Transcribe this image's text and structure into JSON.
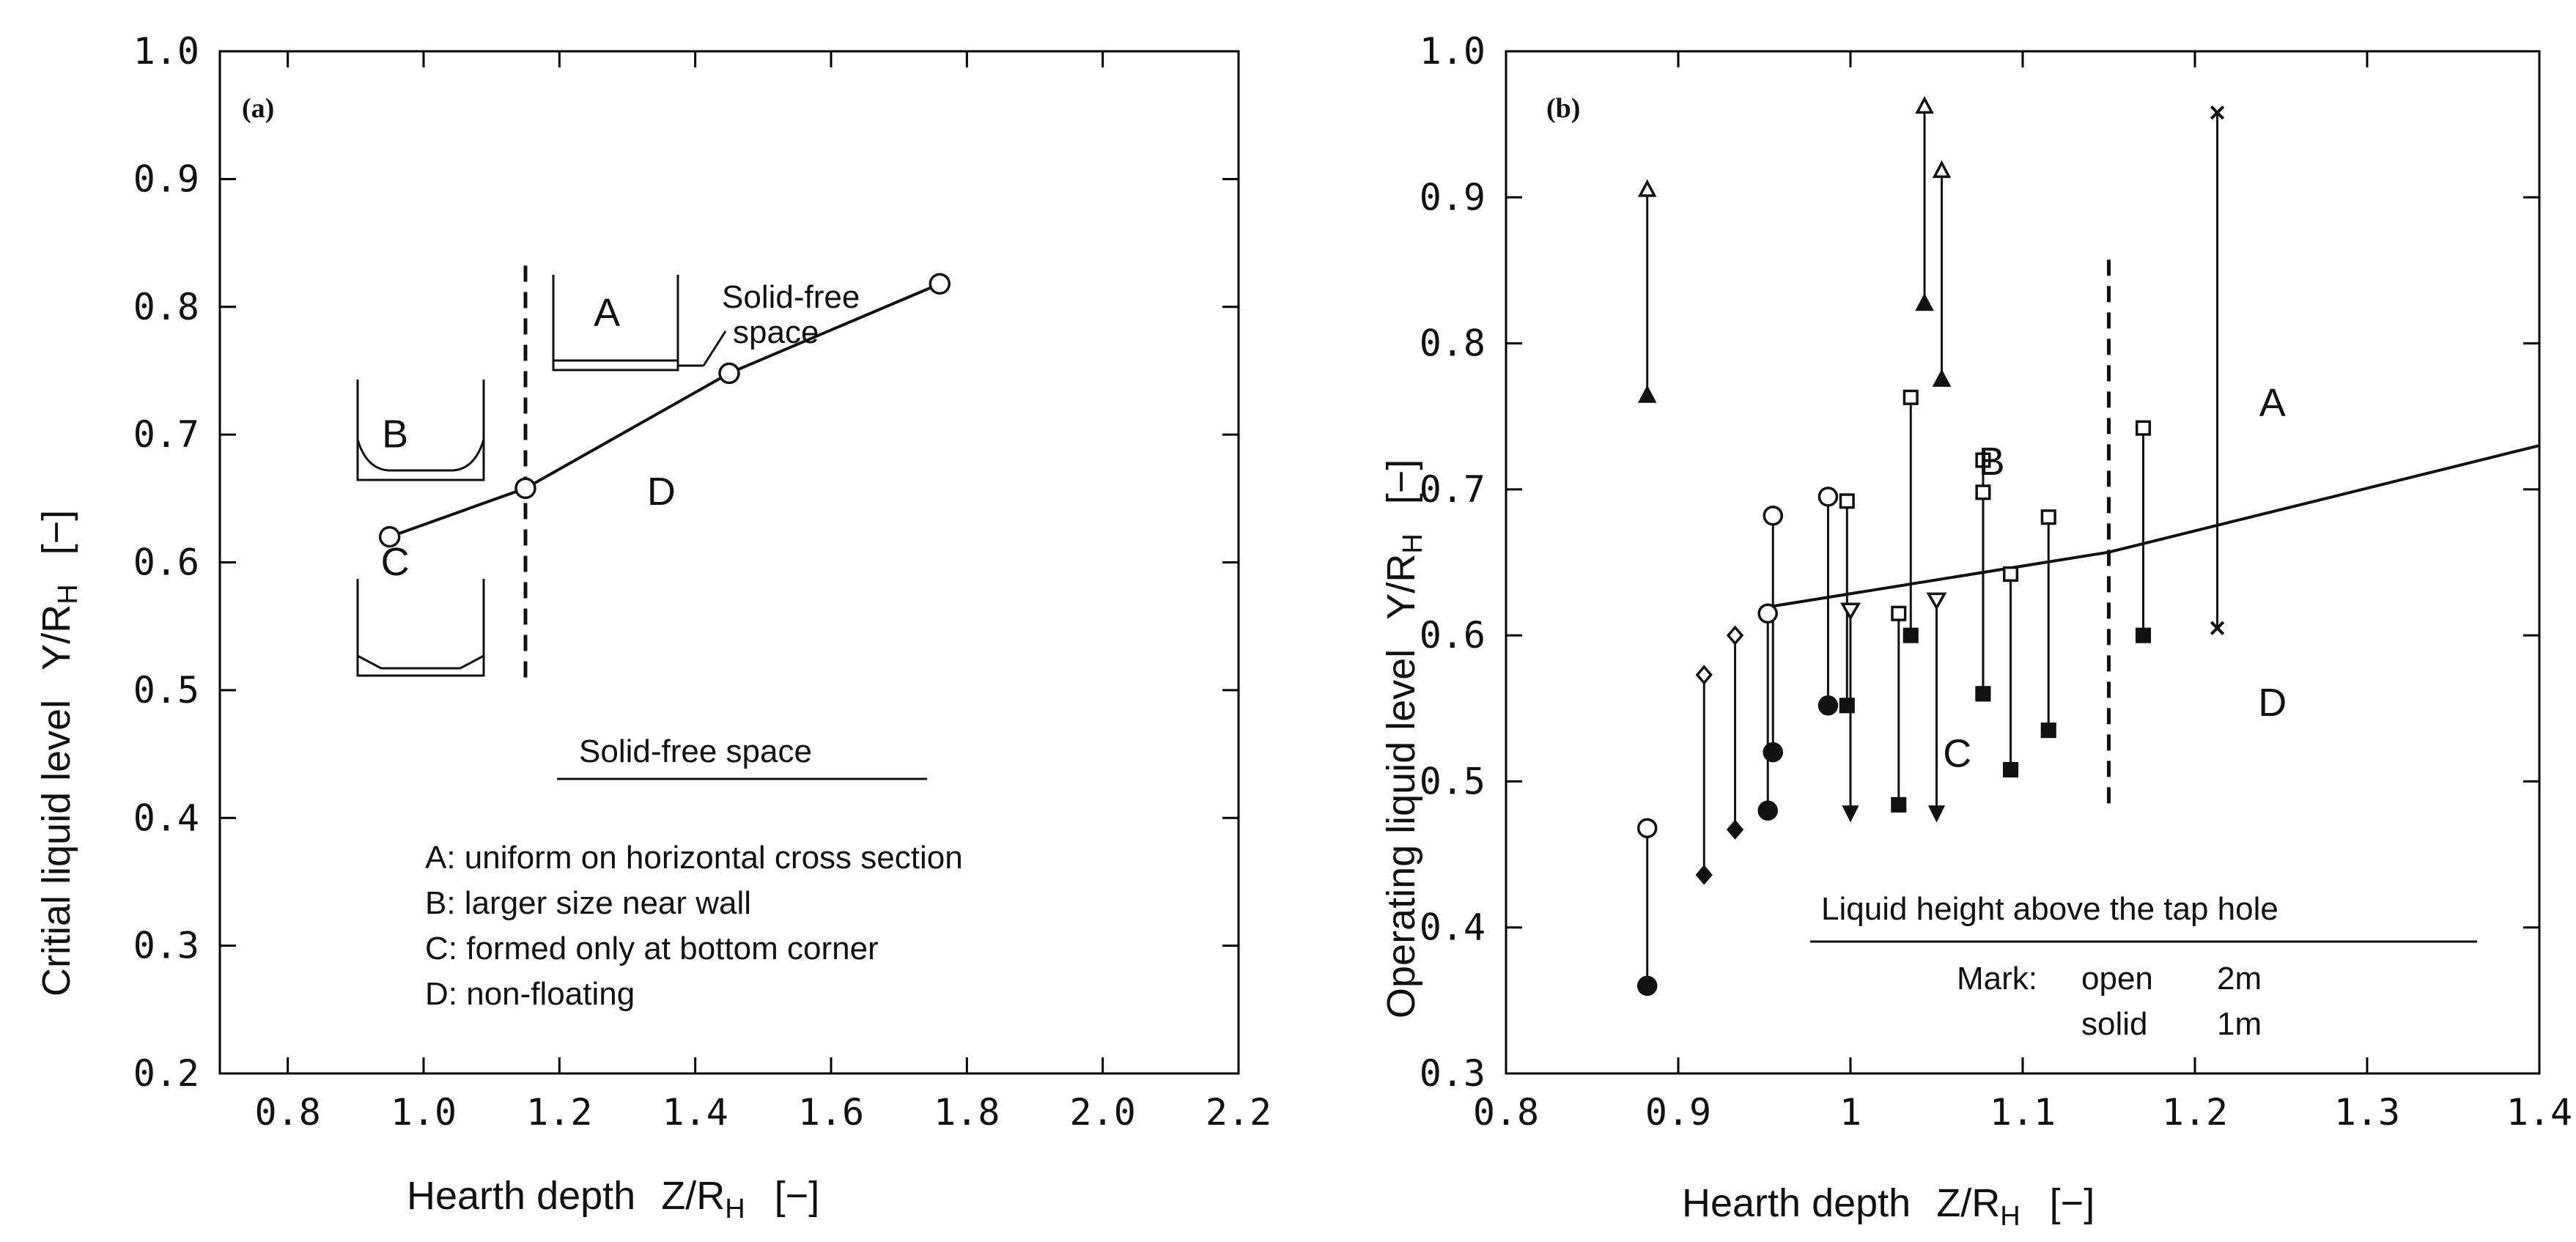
{
  "chart_data": [
    {
      "panel": "(a)",
      "type": "line",
      "xlabel": "Hearth depth",
      "xlabel_sym": "Z/R",
      "ylabel": "Critial liquid level",
      "ylabel_sym": "Y/R",
      "sym_sub": "H",
      "unit": "[−]",
      "xlim": [
        0.7,
        2.2
      ],
      "ylim": [
        0.2,
        1.0
      ],
      "xticks": [
        0.8,
        1.0,
        1.2,
        1.4,
        1.6,
        1.8,
        2.0,
        2.2
      ],
      "xtick_labels": [
        "0.8",
        "1.0",
        "1.2",
        "1.4",
        "1.6",
        "1.8",
        "2.0",
        "2.2"
      ],
      "yticks": [
        0.2,
        0.3,
        0.4,
        0.5,
        0.6,
        0.7,
        0.8,
        0.9,
        1.0
      ],
      "ytick_labels": [
        "0.2",
        "0.3",
        "0.4",
        "0.5",
        "0.6",
        "0.7",
        "0.8",
        "0.9",
        "1.0"
      ],
      "series": [
        {
          "name": "critical level",
          "x": [
            0.95,
            1.15,
            1.45,
            1.76
          ],
          "y": [
            0.62,
            0.658,
            0.748,
            0.818
          ]
        }
      ],
      "boundary_x": 1.15,
      "boundary_y": [
        0.51,
        0.835
      ],
      "regions": [
        {
          "label": "A",
          "x": 1.27,
          "y": 0.785
        },
        {
          "label": "B",
          "x": 0.958,
          "y": 0.69
        },
        {
          "label": "C",
          "x": 0.958,
          "y": 0.59
        },
        {
          "label": "D",
          "x": 1.35,
          "y": 0.645
        }
      ],
      "sketch_caption": "Solid-free\nspace",
      "legend_title": "Solid-free space",
      "legend_items": [
        "A: uniform on horizontal cross section",
        "B: larger size near wall",
        "C: formed only at bottom corner",
        "D: non-floating"
      ]
    },
    {
      "panel": "(b)",
      "type": "scatter",
      "xlabel": "Hearth depth",
      "xlabel_sym": "Z/R",
      "ylabel": "Operating liquid level",
      "ylabel_sym": "Y/R",
      "sym_sub": "H",
      "unit": "[−]",
      "xlim": [
        0.8,
        1.4
      ],
      "ylim": [
        0.3,
        1.0
      ],
      "xticks": [
        0.8,
        0.9,
        1.0,
        1.1,
        1.2,
        1.3,
        1.4
      ],
      "xtick_labels": [
        "0.8",
        "0.9",
        "1",
        "1.1",
        "1.2",
        "1.3",
        "1.4"
      ],
      "yticks": [
        0.3,
        0.4,
        0.5,
        0.6,
        0.7,
        0.8,
        0.9,
        1.0
      ],
      "yticks_labels_note": "same as values",
      "ytick_labels": [
        "0.3",
        "0.4",
        "0.5",
        "0.6",
        "0.7",
        "0.8",
        "0.9",
        "1.0"
      ],
      "boundary_line": {
        "x": [
          0.955,
          1.15,
          1.4
        ],
        "y": [
          0.62,
          0.657,
          0.73
        ]
      },
      "boundary_x": 1.15,
      "boundary_y": [
        0.485,
        0.86
      ],
      "regions": [
        {
          "label": "A",
          "x": 1.245,
          "y": 0.75
        },
        {
          "label": "B",
          "x": 1.082,
          "y": 0.71
        },
        {
          "label": "C",
          "x": 1.062,
          "y": 0.51
        },
        {
          "label": "D",
          "x": 1.245,
          "y": 0.545
        }
      ],
      "pairs": [
        {
          "x": 0.882,
          "open": 0.468,
          "solid": 0.36,
          "marker": "circle"
        },
        {
          "x": 0.955,
          "open": 0.682,
          "solid": 0.52,
          "marker": "circle"
        },
        {
          "x": 0.952,
          "open": 0.615,
          "solid": 0.48,
          "marker": "circle"
        },
        {
          "x": 0.987,
          "open": 0.695,
          "solid": 0.552,
          "marker": "circle"
        },
        {
          "x": 0.915,
          "open": 0.573,
          "solid": 0.436,
          "marker": "diamond"
        },
        {
          "x": 0.933,
          "open": 0.6,
          "solid": 0.467,
          "marker": "diamond"
        },
        {
          "x": 0.882,
          "open": 0.905,
          "solid": 0.764,
          "marker": "triangle"
        },
        {
          "x": 1.043,
          "open": 0.962,
          "solid": 0.827,
          "marker": "triangle"
        },
        {
          "x": 1.053,
          "open": 0.918,
          "solid": 0.775,
          "marker": "triangle"
        },
        {
          "x": 0.998,
          "open": 0.692,
          "solid": 0.552,
          "marker": "square"
        },
        {
          "x": 1.028,
          "open": 0.615,
          "solid": 0.484,
          "marker": "square"
        },
        {
          "x": 1.035,
          "open": 0.763,
          "solid": 0.6,
          "marker": "square"
        },
        {
          "x": 1.077,
          "open": 0.72,
          "solid": 0.56,
          "marker": "square"
        },
        {
          "x": 1.077,
          "open": 0.698,
          "solid": 0.56,
          "marker": "square"
        },
        {
          "x": 1.093,
          "open": 0.642,
          "solid": 0.508,
          "marker": "square"
        },
        {
          "x": 1.115,
          "open": 0.681,
          "solid": 0.535,
          "marker": "square"
        },
        {
          "x": 1.17,
          "open": 0.742,
          "solid": 0.6,
          "marker": "square"
        },
        {
          "x": 1.213,
          "open": 0.958,
          "solid": 0.605,
          "marker": "cross"
        }
      ],
      "arrow_down": [
        {
          "x": 1.0,
          "from": 0.617,
          "to": 0.475
        },
        {
          "x": 1.05,
          "from": 0.624,
          "to": 0.475
        }
      ],
      "legend_title": "Liquid height above the tap hole",
      "legend_mark": "Mark:",
      "legend_open": "open",
      "legend_open_value": "2m",
      "legend_solid": "solid",
      "legend_solid_value": "1m"
    }
  ]
}
